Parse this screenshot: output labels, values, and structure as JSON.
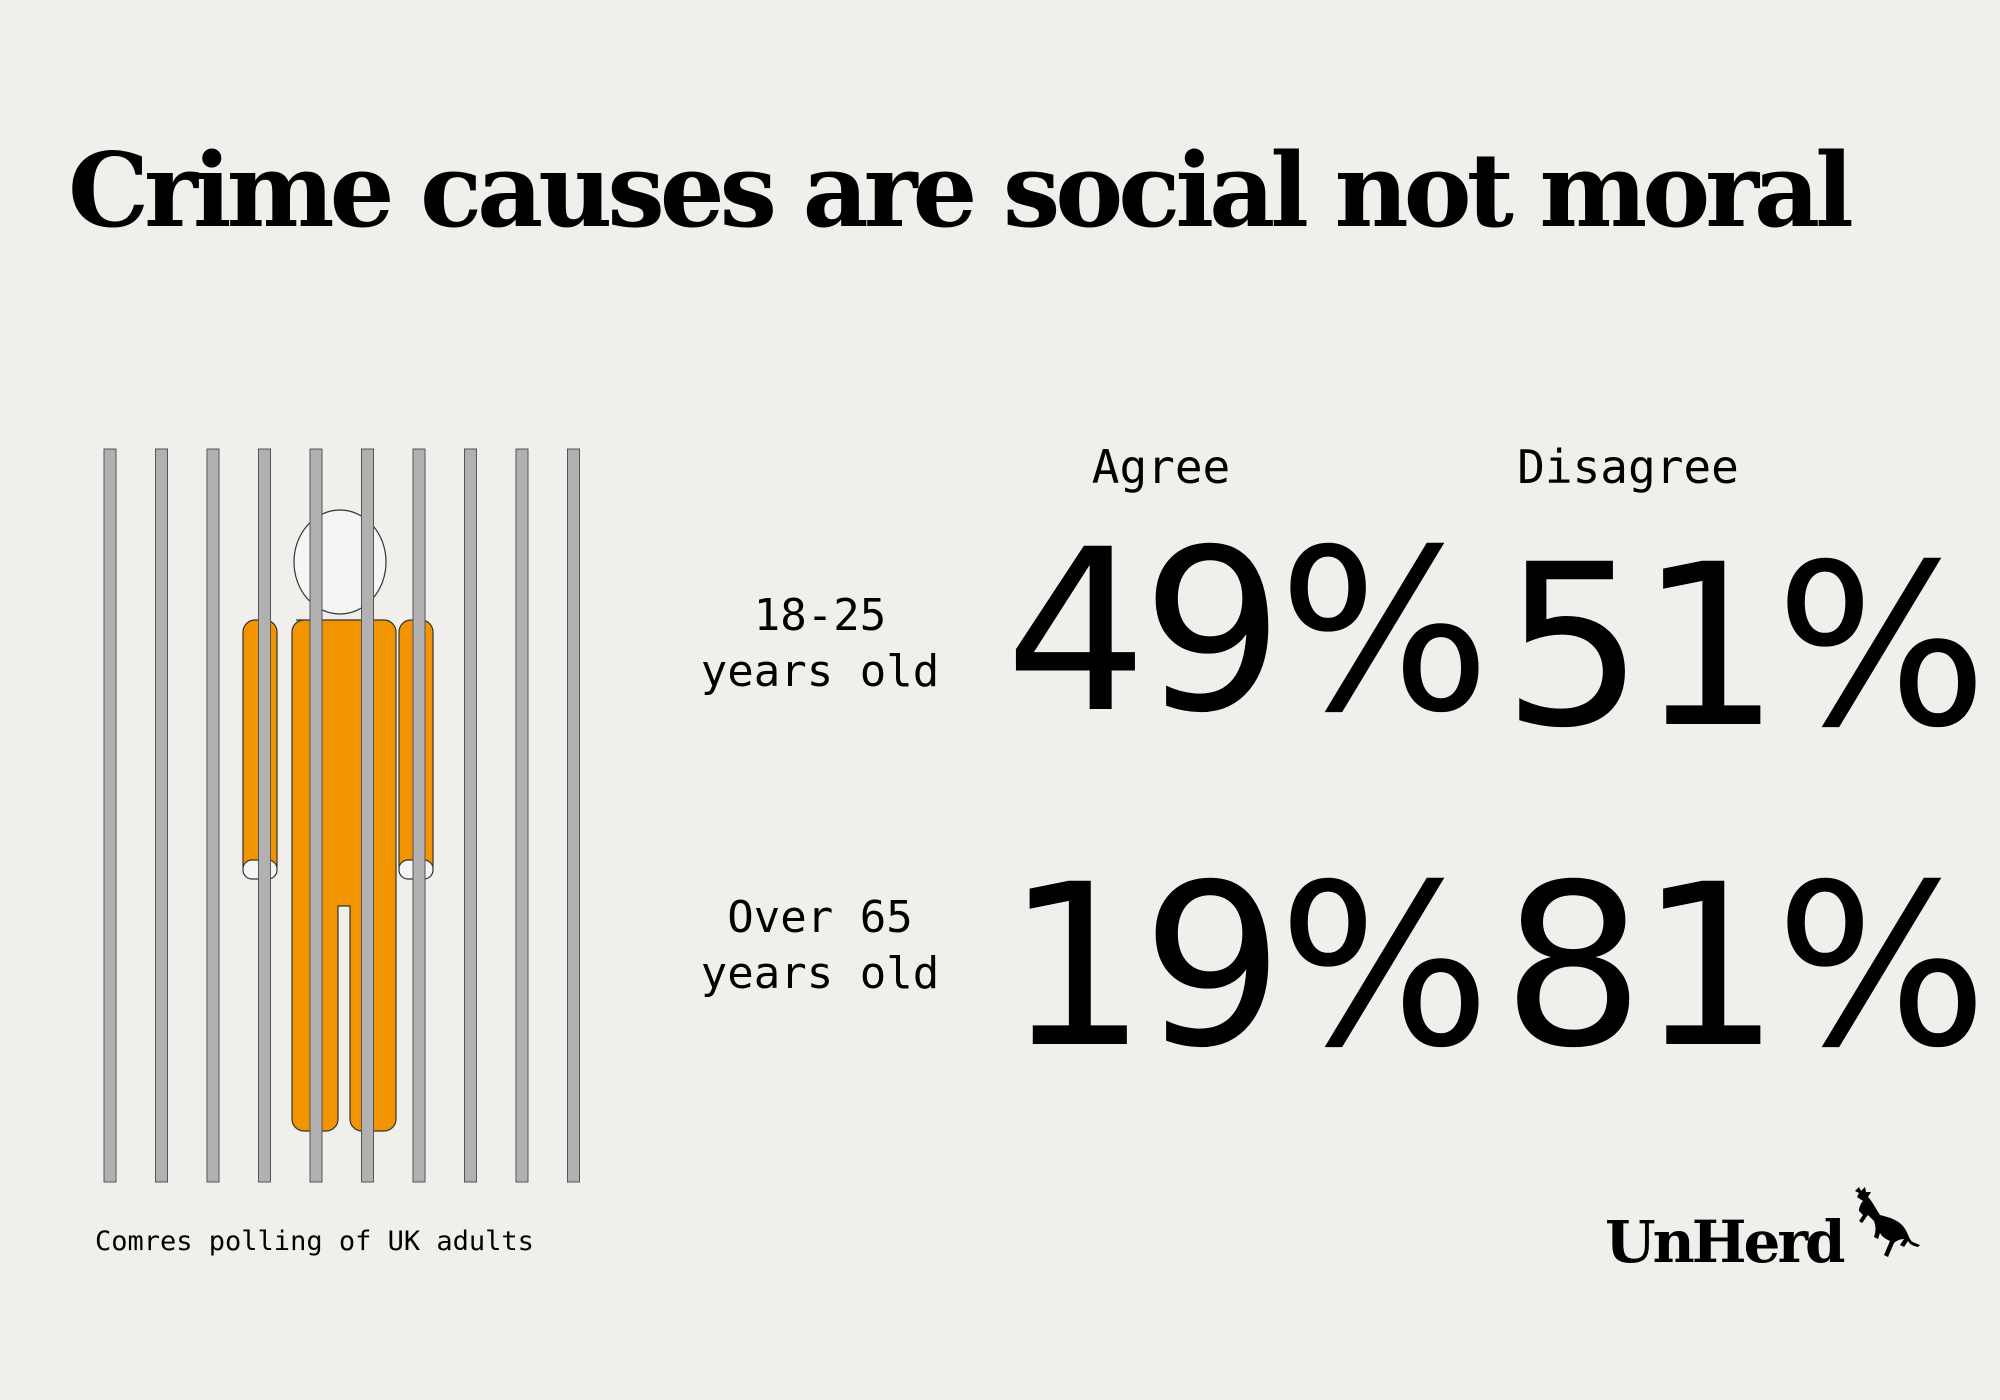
{
  "title": "Crime causes are social not moral",
  "source": "Comres polling of UK adults",
  "brand": "UnHerd",
  "colors": {
    "background": "#f0efeb",
    "jumpsuit": "#f29400",
    "bars": "#b1b1b1",
    "head": "#f5f5f5"
  },
  "icons": {
    "illustration": "prisoner-behind-bars-icon",
    "logo_mark": "leaping-cow-icon"
  },
  "chart_data": {
    "type": "table",
    "title": "Crime causes are social not moral",
    "columns": [
      "Agree",
      "Disagree"
    ],
    "rows": [
      {
        "label_line1": "18-25",
        "label_line2": "years old",
        "agree": 49,
        "disagree": 51,
        "agree_text": "49%",
        "disagree_text": "51%"
      },
      {
        "label_line1": "Over 65",
        "label_line2": "years old",
        "agree": 19,
        "disagree": 81,
        "agree_text": "19%",
        "disagree_text": "81%"
      }
    ],
    "unit": "%",
    "note": "Comres polling of UK adults"
  }
}
